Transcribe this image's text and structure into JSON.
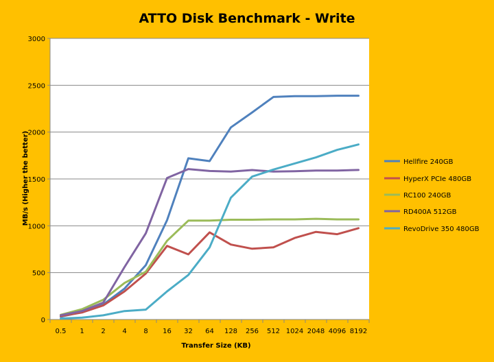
{
  "chart_data": {
    "type": "line",
    "title": "ATTO Disk Benchmark - Write",
    "xlabel": "Transfer Size (KB)",
    "ylabel": "MB/s (Higher the better)",
    "categories": [
      "0.5",
      "1",
      "2",
      "4",
      "8",
      "16",
      "32",
      "64",
      "128",
      "256",
      "512",
      "1024",
      "2048",
      "4096",
      "8192"
    ],
    "ylim": [
      0,
      3000
    ],
    "yticks": [
      "0",
      "500",
      "1000",
      "1500",
      "2000",
      "2500",
      "3000"
    ],
    "grid": "horizontal",
    "legend_position": "right",
    "series": [
      {
        "name": "Hellfire 240GB",
        "color": "#4F81BD",
        "values": [
          30,
          80,
          160,
          330,
          580,
          1060,
          1720,
          1690,
          2050,
          2210,
          2375,
          2383,
          2383,
          2388,
          2388
        ]
      },
      {
        "name": "HyperX PCIe 480GB",
        "color": "#C0504D",
        "values": [
          35,
          75,
          150,
          300,
          490,
          785,
          695,
          930,
          800,
          755,
          770,
          870,
          935,
          910,
          975
        ]
      },
      {
        "name": "RC100 240GB",
        "color": "#9BBB59",
        "values": [
          50,
          110,
          210,
          390,
          510,
          840,
          1055,
          1055,
          1065,
          1065,
          1068,
          1068,
          1075,
          1068,
          1068
        ]
      },
      {
        "name": "RD400A 512GB",
        "color": "#8064A2",
        "values": [
          45,
          90,
          180,
          560,
          920,
          1510,
          1605,
          1585,
          1578,
          1595,
          1578,
          1582,
          1590,
          1590,
          1596
        ]
      },
      {
        "name": "RevoDrive 350 480GB",
        "color": "#4BACC6",
        "values": [
          10,
          20,
          45,
          90,
          105,
          300,
          475,
          770,
          1300,
          1525,
          1600,
          1665,
          1730,
          1810,
          1868
        ]
      }
    ]
  }
}
